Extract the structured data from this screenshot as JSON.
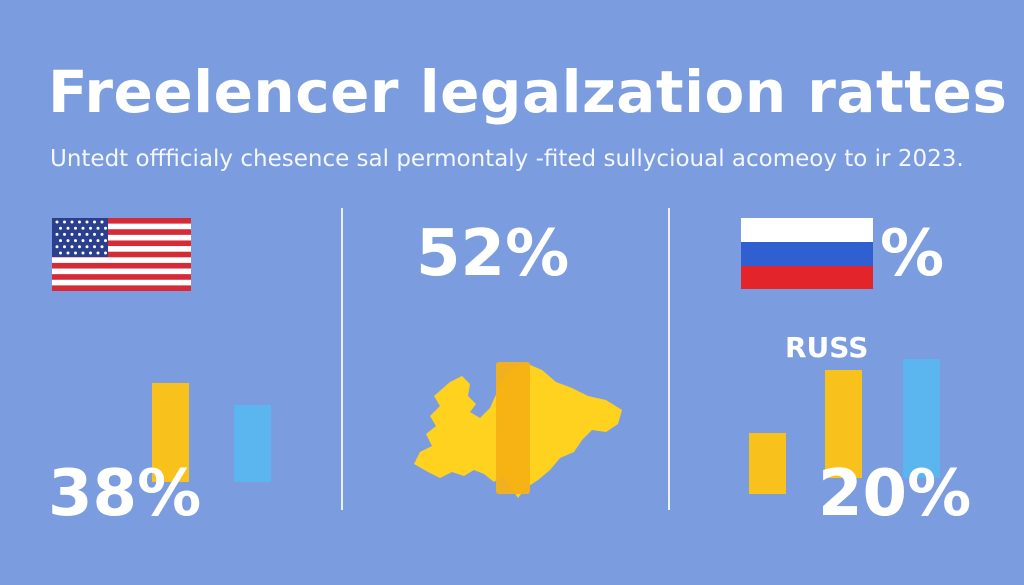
{
  "title": "Freelencer legalzation rattes",
  "subtitle": "Untedt offficialy chesence sal permontaly -fited sullycioual acomeoy to ir 2023.",
  "colors": {
    "background": "#7b9ddf",
    "bar_yellow": "#f9c11b",
    "bar_blue": "#5bb6f0",
    "map_yellow": "#ffd21f"
  },
  "chart_data": [
    {
      "type": "bar",
      "panel": "left",
      "flag": "us-flag-icon",
      "value_label": "38%",
      "values": [
        0.62,
        0.48
      ],
      "colors": [
        "#f9c11b",
        "#5bb6f0"
      ]
    },
    {
      "type": "map",
      "panel": "center",
      "map": "europe-map-icon",
      "value_label": "52%"
    },
    {
      "type": "bar",
      "panel": "right",
      "flag": "russia-flag-icon",
      "top_label": "%",
      "country_label": "RUSS",
      "value_label": "20%",
      "values": [
        0.48,
        0.84,
        0.93
      ],
      "colors": [
        "#f9c11b",
        "#f9c11b",
        "#5bb6f0"
      ]
    }
  ]
}
